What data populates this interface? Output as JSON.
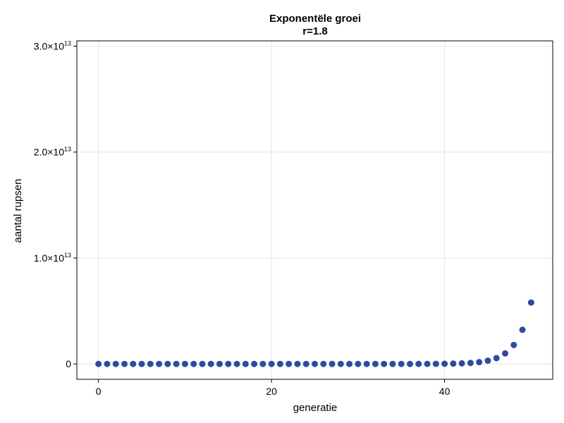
{
  "chart_data": {
    "type": "scatter",
    "title": "Exponentële groei",
    "subtitle": "r=1.8",
    "xlabel": "generatie",
    "ylabel": "aantal rupsen",
    "xlim": [
      -2.5,
      52.5
    ],
    "ylim": [
      -1450000000000.0,
      30500000000000.0
    ],
    "grid": true,
    "marker_color": "#2f4b9f",
    "x_ticks": [
      {
        "value": 0,
        "label": "0"
      },
      {
        "value": 20,
        "label": "20"
      },
      {
        "value": 40,
        "label": "40"
      }
    ],
    "y_ticks": [
      {
        "value": 0,
        "label": "0",
        "exp": ""
      },
      {
        "value": 10000000000000.0,
        "label": "1.0×10",
        "exp": "13"
      },
      {
        "value": 20000000000000.0,
        "label": "2.0×10",
        "exp": "13"
      },
      {
        "value": 30000000000000.0,
        "label": "3.0×10",
        "exp": "13"
      }
    ],
    "series": [
      {
        "x": [
          0,
          1,
          2,
          3,
          4,
          5,
          6,
          7,
          8,
          9,
          10,
          11,
          12,
          13,
          14,
          15,
          16,
          17,
          18,
          19,
          20,
          21,
          22,
          23,
          24,
          25,
          26,
          27,
          28,
          29,
          30,
          31,
          32,
          33,
          34,
          35,
          36,
          37,
          38,
          39,
          40,
          41,
          42,
          43,
          44,
          45,
          46,
          47,
          48,
          49,
          50
        ],
        "y": [
          1,
          1.8,
          3.24,
          5.83,
          10.5,
          18.9,
          34.0,
          61.2,
          110,
          198,
          357,
          642,
          1156,
          2082,
          3747,
          6745,
          12141,
          21853,
          39336,
          70805,
          127449,
          229408,
          412935,
          743283,
          1337909,
          2408236,
          4334825,
          7802685,
          14044833,
          25280699,
          45505259,
          81909466,
          147437039,
          265386670,
          477696006,
          859852811,
          1547735060,
          2785923108,
          5014661594,
          9026390870,
          16247503566,
          29245506419,
          52641911554,
          94755440797,
          170559793435,
          307007628183,
          552613730730,
          994704715314,
          1790468487565,
          3222843277617,
          5801117899711
        ]
      }
    ]
  }
}
